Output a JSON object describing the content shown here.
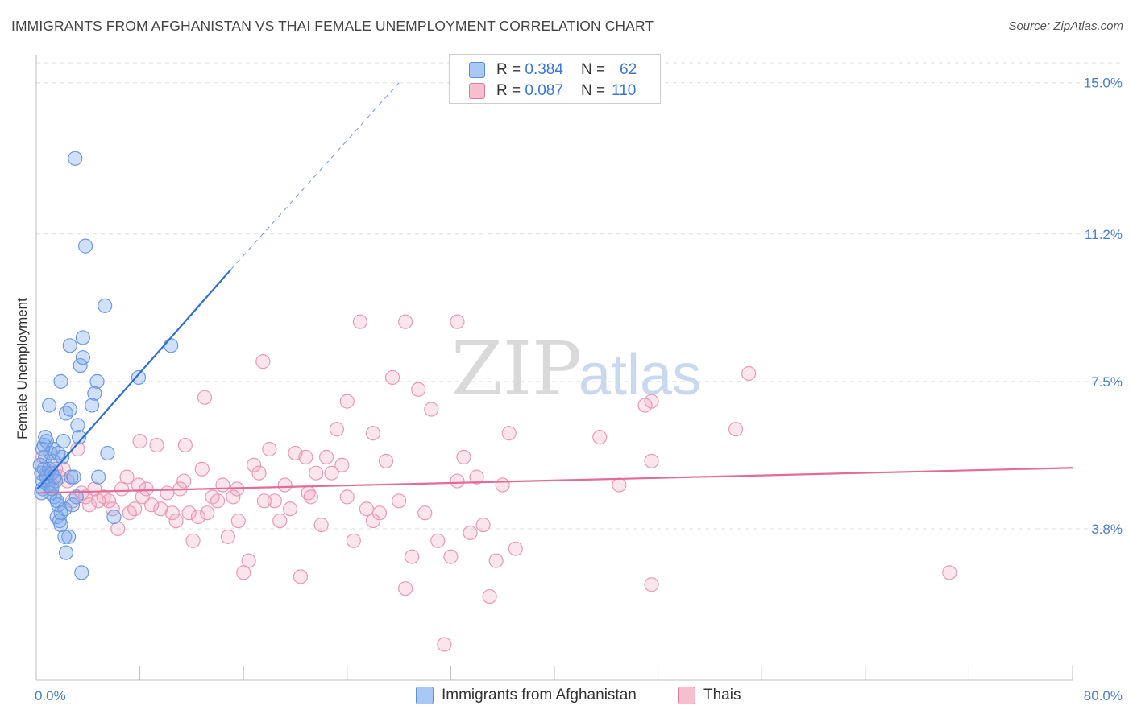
{
  "header": {
    "title": "IMMIGRANTS FROM AFGHANISTAN VS THAI FEMALE UNEMPLOYMENT CORRELATION CHART",
    "source": "Source: ZipAtlas.com"
  },
  "watermark": {
    "part1": "ZIP",
    "part2": "atlas"
  },
  "legend": {
    "rows": [
      {
        "r_label": "R =",
        "r_value": "0.384",
        "n_label": "N =",
        "n_value": "62",
        "color": "#a9c8f4",
        "border": "#5b8fd8"
      },
      {
        "r_label": "R =",
        "r_value": "0.087",
        "n_label": "N =",
        "n_value": "110",
        "color": "#f6bfd0",
        "border": "#e07a9e"
      }
    ]
  },
  "bottom_legend": {
    "items": [
      {
        "label": "Immigrants from Afghanistan",
        "color": "#a9c8f4",
        "border": "#5b8fd8"
      },
      {
        "label": "Thais",
        "color": "#f6bfd0",
        "border": "#e07a9e"
      }
    ]
  },
  "colors": {
    "blue_fill": "rgba(120,165,235,0.35)",
    "blue_stroke": "#6c9ae0",
    "blue_line": "#2e6fd6",
    "pink_fill": "rgba(240,150,180,0.25)",
    "pink_stroke": "#e89ab5",
    "pink_line": "#e26b97",
    "grid": "#dddddd",
    "tick_text": "#4a7fd0"
  },
  "chart_data": {
    "type": "scatter",
    "title": "IMMIGRANTS FROM AFGHANISTAN VS THAI FEMALE UNEMPLOYMENT CORRELATION CHART",
    "xlabel": "",
    "ylabel": "Female Unemployment",
    "xlim": [
      0,
      80
    ],
    "ylim": [
      0,
      15.5
    ],
    "x_tick_labels": [
      "0.0%",
      "80.0%"
    ],
    "y_ticks": [
      3.8,
      7.5,
      11.2,
      15.0
    ],
    "y_tick_labels": [
      "3.8%",
      "7.5%",
      "11.2%",
      "15.0%"
    ],
    "grid": true,
    "series": [
      {
        "name": "Immigrants from Afghanistan",
        "trend": {
          "x": [
            0.1,
            15.0
          ],
          "y": [
            4.8,
            10.3
          ],
          "dashed_to": [
            28.0,
            15.0
          ]
        },
        "points": [
          [
            0.3,
            5.4
          ],
          [
            0.4,
            5.2
          ],
          [
            0.5,
            5.0
          ],
          [
            0.6,
            5.3
          ],
          [
            0.5,
            4.8
          ],
          [
            0.7,
            5.6
          ],
          [
            0.8,
            5.1
          ],
          [
            0.6,
            5.9
          ],
          [
            0.9,
            4.9
          ],
          [
            1.0,
            5.3
          ],
          [
            1.1,
            4.7
          ],
          [
            1.2,
            5.2
          ],
          [
            1.3,
            5.5
          ],
          [
            1.4,
            4.6
          ],
          [
            1.5,
            5.0
          ],
          [
            1.6,
            4.1
          ],
          [
            1.7,
            4.4
          ],
          [
            1.8,
            4.0
          ],
          [
            1.9,
            3.9
          ],
          [
            2.0,
            5.6
          ],
          [
            2.1,
            6.0
          ],
          [
            2.2,
            4.3
          ],
          [
            0.8,
            6.0
          ],
          [
            1.0,
            6.9
          ],
          [
            1.1,
            5.7
          ],
          [
            1.3,
            5.8
          ],
          [
            1.4,
            5.1
          ],
          [
            1.6,
            4.5
          ],
          [
            1.7,
            5.7
          ],
          [
            1.9,
            4.2
          ],
          [
            2.2,
            3.6
          ],
          [
            2.3,
            3.2
          ],
          [
            2.5,
            3.6
          ],
          [
            2.7,
            5.1
          ],
          [
            2.8,
            4.4
          ],
          [
            2.9,
            5.1
          ],
          [
            3.1,
            4.6
          ],
          [
            3.3,
            6.1
          ],
          [
            3.5,
            2.7
          ],
          [
            1.9,
            7.5
          ],
          [
            2.3,
            6.7
          ],
          [
            2.6,
            6.8
          ],
          [
            2.6,
            8.4
          ],
          [
            3.2,
            6.4
          ],
          [
            3.4,
            7.9
          ],
          [
            3.6,
            8.6
          ],
          [
            3.6,
            8.1
          ],
          [
            4.3,
            6.9
          ],
          [
            4.5,
            7.2
          ],
          [
            4.7,
            7.5
          ],
          [
            4.8,
            5.1
          ],
          [
            5.5,
            5.7
          ],
          [
            6.0,
            4.1
          ],
          [
            3.0,
            13.1
          ],
          [
            3.8,
            10.9
          ],
          [
            5.3,
            9.4
          ],
          [
            7.9,
            7.6
          ],
          [
            10.4,
            8.4
          ],
          [
            0.4,
            4.7
          ],
          [
            0.5,
            5.8
          ],
          [
            0.7,
            6.1
          ],
          [
            1.2,
            4.8
          ]
        ]
      },
      {
        "name": "Thais",
        "trend": {
          "x": [
            0.1,
            80.0
          ],
          "y": [
            4.7,
            5.33
          ]
        },
        "points": [
          [
            0.5,
            5.6
          ],
          [
            0.8,
            5.2
          ],
          [
            1.2,
            4.9
          ],
          [
            1.5,
            5.3
          ],
          [
            1.8,
            5.1
          ],
          [
            2.1,
            5.3
          ],
          [
            2.4,
            5.0
          ],
          [
            2.8,
            4.5
          ],
          [
            3.2,
            5.8
          ],
          [
            3.5,
            4.7
          ],
          [
            3.8,
            4.6
          ],
          [
            4.1,
            4.4
          ],
          [
            4.5,
            4.8
          ],
          [
            4.8,
            4.5
          ],
          [
            5.2,
            4.6
          ],
          [
            5.6,
            4.5
          ],
          [
            5.9,
            4.3
          ],
          [
            6.3,
            3.8
          ],
          [
            6.6,
            4.8
          ],
          [
            7.0,
            5.1
          ],
          [
            7.2,
            4.2
          ],
          [
            7.6,
            4.3
          ],
          [
            7.9,
            4.9
          ],
          [
            8.2,
            4.6
          ],
          [
            8.5,
            4.8
          ],
          [
            8.9,
            4.4
          ],
          [
            9.3,
            5.9
          ],
          [
            9.6,
            4.3
          ],
          [
            10.1,
            4.7
          ],
          [
            10.5,
            4.2
          ],
          [
            10.8,
            4.0
          ],
          [
            11.1,
            4.8
          ],
          [
            11.4,
            5.0
          ],
          [
            11.8,
            4.2
          ],
          [
            12.1,
            3.5
          ],
          [
            12.5,
            4.1
          ],
          [
            12.8,
            5.3
          ],
          [
            13.2,
            4.2
          ],
          [
            13.6,
            4.6
          ],
          [
            14.0,
            4.5
          ],
          [
            14.4,
            4.9
          ],
          [
            14.8,
            3.6
          ],
          [
            15.2,
            4.6
          ],
          [
            15.6,
            4.0
          ],
          [
            16.0,
            2.7
          ],
          [
            16.4,
            3.0
          ],
          [
            16.8,
            5.4
          ],
          [
            17.2,
            5.2
          ],
          [
            17.6,
            4.5
          ],
          [
            18.0,
            5.8
          ],
          [
            18.4,
            4.5
          ],
          [
            18.8,
            4.0
          ],
          [
            19.2,
            4.9
          ],
          [
            19.6,
            4.3
          ],
          [
            20.0,
            5.7
          ],
          [
            20.4,
            2.6
          ],
          [
            20.8,
            5.6
          ],
          [
            21.2,
            4.6
          ],
          [
            21.6,
            5.2
          ],
          [
            22.0,
            3.9
          ],
          [
            22.4,
            5.6
          ],
          [
            22.8,
            5.2
          ],
          [
            23.2,
            6.3
          ],
          [
            23.6,
            5.4
          ],
          [
            24.0,
            7.0
          ],
          [
            24.5,
            3.5
          ],
          [
            25.0,
            9.0
          ],
          [
            25.5,
            4.3
          ],
          [
            26.0,
            4.0
          ],
          [
            26.5,
            4.2
          ],
          [
            27.0,
            5.5
          ],
          [
            27.5,
            7.6
          ],
          [
            28.0,
            4.5
          ],
          [
            28.5,
            2.3
          ],
          [
            29.0,
            3.1
          ],
          [
            29.5,
            7.3
          ],
          [
            30.0,
            4.2
          ],
          [
            30.5,
            6.8
          ],
          [
            31.0,
            3.5
          ],
          [
            31.5,
            0.9
          ],
          [
            32.0,
            3.1
          ],
          [
            32.5,
            5.0
          ],
          [
            33.0,
            5.6
          ],
          [
            33.5,
            3.7
          ],
          [
            34.0,
            5.1
          ],
          [
            34.5,
            3.9
          ],
          [
            35.0,
            2.1
          ],
          [
            35.5,
            3.0
          ],
          [
            36.0,
            4.9
          ],
          [
            36.5,
            6.2
          ],
          [
            37.0,
            3.3
          ],
          [
            43.5,
            6.1
          ],
          [
            45.0,
            4.9
          ],
          [
            47.0,
            6.9
          ],
          [
            47.5,
            7.0
          ],
          [
            47.5,
            2.4
          ],
          [
            47.5,
            5.5
          ],
          [
            54.0,
            6.3
          ],
          [
            55.0,
            7.7
          ],
          [
            70.5,
            2.7
          ],
          [
            28.5,
            9.0
          ],
          [
            32.5,
            9.0
          ],
          [
            17.5,
            8.0
          ],
          [
            13.0,
            7.1
          ],
          [
            24.0,
            4.6
          ],
          [
            21.0,
            4.7
          ],
          [
            15.5,
            4.8
          ],
          [
            8.0,
            6.0
          ],
          [
            11.5,
            5.9
          ],
          [
            26.0,
            6.2
          ]
        ]
      }
    ]
  }
}
